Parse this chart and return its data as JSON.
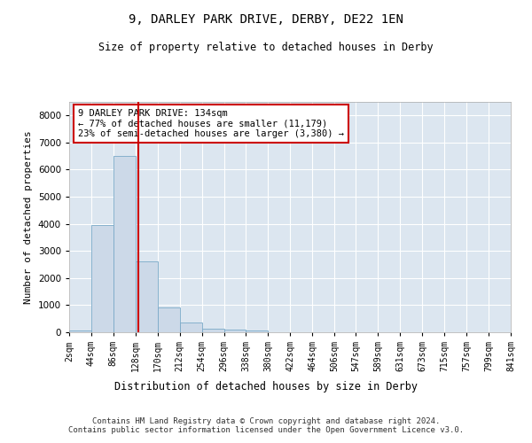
{
  "title": "9, DARLEY PARK DRIVE, DERBY, DE22 1EN",
  "subtitle": "Size of property relative to detached houses in Derby",
  "xlabel": "Distribution of detached houses by size in Derby",
  "ylabel": "Number of detached properties",
  "bar_color": "#ccd9e8",
  "bar_edge_color": "#7aaac8",
  "background_color": "#dce6f0",
  "grid_color": "#ffffff",
  "property_line_color": "#cc0000",
  "property_sqm": 134,
  "annotation_text": "9 DARLEY PARK DRIVE: 134sqm\n← 77% of detached houses are smaller (11,179)\n23% of semi-detached houses are larger (3,380) →",
  "footer_text": "Contains HM Land Registry data © Crown copyright and database right 2024.\nContains public sector information licensed under the Open Government Licence v3.0.",
  "bin_edges": [
    2,
    44,
    86,
    128,
    170,
    212,
    254,
    296,
    338,
    380,
    422,
    464,
    506,
    547,
    589,
    631,
    673,
    715,
    757,
    799,
    841
  ],
  "bin_labels": [
    "2sqm",
    "44sqm",
    "86sqm",
    "128sqm",
    "170sqm",
    "212sqm",
    "254sqm",
    "296sqm",
    "338sqm",
    "380sqm",
    "422sqm",
    "464sqm",
    "506sqm",
    "547sqm",
    "589sqm",
    "631sqm",
    "673sqm",
    "715sqm",
    "757sqm",
    "799sqm",
    "841sqm"
  ],
  "bar_heights": [
    50,
    3950,
    6500,
    2600,
    900,
    350,
    120,
    100,
    60,
    0,
    0,
    0,
    0,
    0,
    0,
    0,
    0,
    0,
    0,
    0
  ],
  "ylim": [
    0,
    8500
  ],
  "yticks": [
    0,
    1000,
    2000,
    3000,
    4000,
    5000,
    6000,
    7000,
    8000
  ]
}
